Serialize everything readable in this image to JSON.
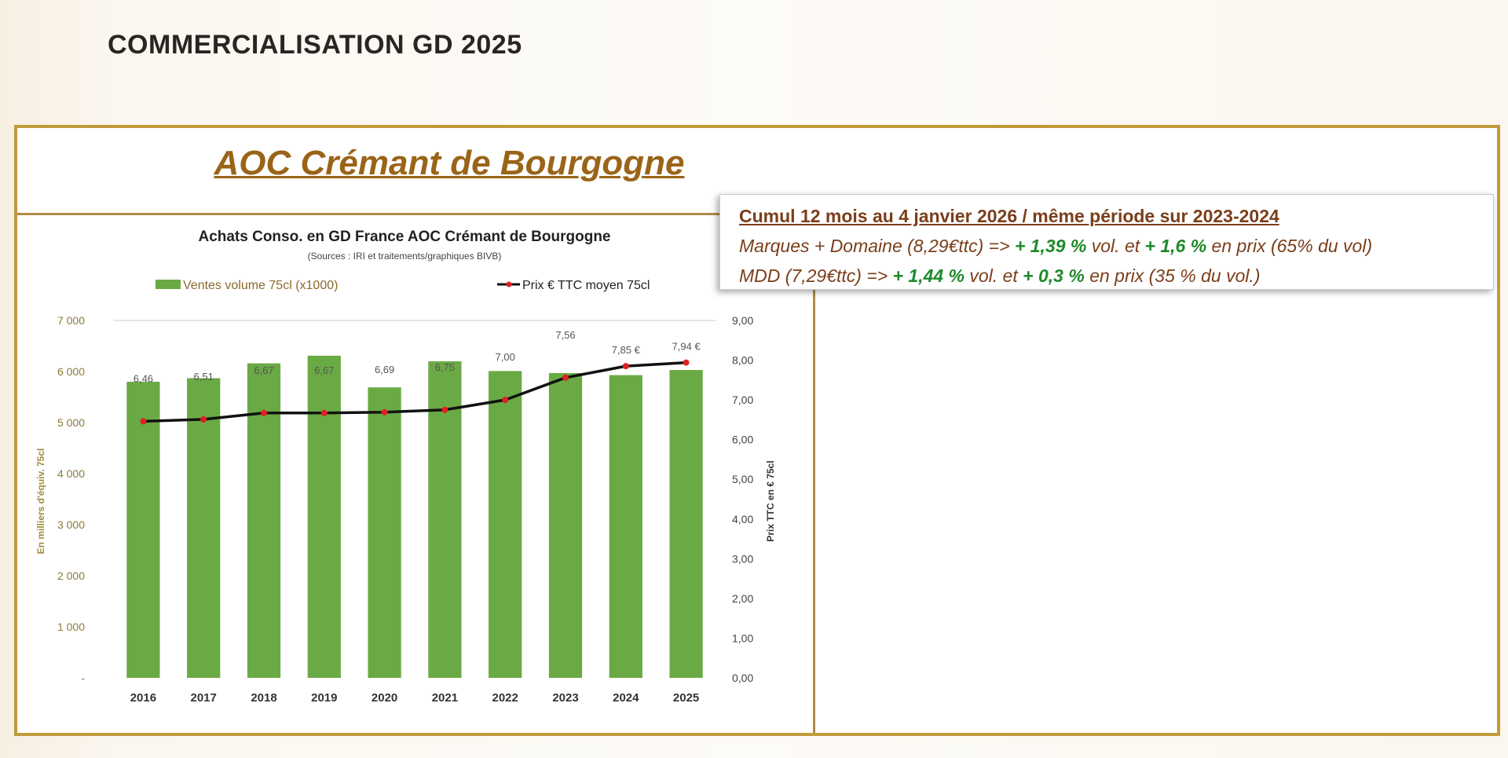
{
  "page_title": "COMMERCIALISATION GD 2025",
  "section_title": "AOC Crémant de Bourgogne",
  "note": {
    "heading": "Cumul 12 mois au 4 janvier 2026 / même période sur 2023-2024",
    "line1": {
      "a": "Marques + Domaine (8,29€ttc) => ",
      "b": "+ 1,39 %",
      "c": " vol. et ",
      "d": "+ 1,6 %",
      "e": " en prix (65% du vol)"
    },
    "line2": {
      "a": "MDD (7,29€ttc) => ",
      "b": "+ 1,44 %",
      "c": " vol. et ",
      "d": "+ 0,3 %",
      "e": " en prix (35 % du vol.)"
    }
  },
  "chart_data": {
    "type": "bar+line",
    "title": "Achats Conso. en GD France AOC Crémant de Bourgogne",
    "subtitle": "(Sources : IRI et traitements/graphiques BIVB)",
    "legend": {
      "bar": "Ventes volume 75cl (x1000)",
      "line": "Prix € TTC moyen 75cl",
      "placement": "top"
    },
    "categories": [
      "2016",
      "2017",
      "2018",
      "2019",
      "2020",
      "2021",
      "2022",
      "2023",
      "2024",
      "2025"
    ],
    "series": [
      {
        "name": "Ventes volume 75cl (x1000)",
        "axis": "left",
        "type": "bar",
        "color": "#6aaa45",
        "values": [
          5800,
          5870,
          6160,
          6310,
          5690,
          6200,
          6010,
          5970,
          5930,
          6030
        ]
      },
      {
        "name": "Prix € TTC moyen 75cl",
        "axis": "right",
        "type": "line",
        "color": "#111111",
        "marker_color": "#e02020",
        "values": [
          6.46,
          6.51,
          6.67,
          6.67,
          6.69,
          6.75,
          7.0,
          7.56,
          7.85,
          7.94
        ],
        "labels": [
          "6,46",
          "6,51",
          "6,67",
          "6,67",
          "6,69",
          "6,75",
          "7,00",
          "7,56",
          "7,85 €",
          "7,94 €"
        ]
      }
    ],
    "ylabel_left": "En milliers d'équiv. 75cl",
    "ylabel_right": "Prix TTC en € 75cl",
    "ylim_left": [
      0,
      7000
    ],
    "ylim_right": [
      0,
      9
    ],
    "left_ticks": [
      "-",
      "1 000",
      "2 000",
      "3 000",
      "4 000",
      "5 000",
      "6 000",
      "7 000"
    ],
    "right_ticks": [
      "0,00",
      "1,00",
      "2,00",
      "3,00",
      "4,00",
      "5,00",
      "6,00",
      "7,00",
      "8,00",
      "9,00"
    ]
  }
}
